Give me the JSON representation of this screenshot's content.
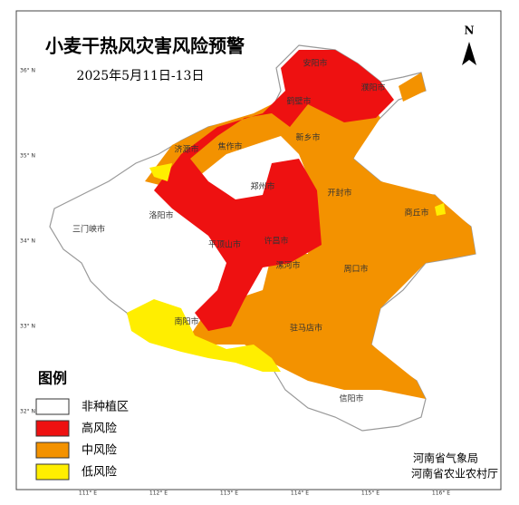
{
  "header": {
    "title": "小麦干热风灾害风险预警",
    "date": "2025年5月11日-13日"
  },
  "north": "N",
  "legend": {
    "title": "图例",
    "items": [
      {
        "label": "非种植区",
        "color": "#ffffff"
      },
      {
        "label": "高风险",
        "color": "#ee1111"
      },
      {
        "label": "中风险",
        "color": "#f39200"
      },
      {
        "label": "低风险",
        "color": "#ffee00"
      }
    ]
  },
  "cities": [
    "安阳市",
    "濮阳市",
    "鹤壁市",
    "新乡市",
    "济源市",
    "焦作市",
    "郑州市",
    "开封市",
    "商丘市",
    "三门峡市",
    "洛阳市",
    "平顶山市",
    "许昌市",
    "漯河市",
    "周口市",
    "南阳市",
    "驻马店市",
    "信阳市"
  ],
  "lat_labels": [
    "36° N",
    "35° N",
    "34° N",
    "33° N",
    "32° N"
  ],
  "lon_labels": [
    "111° E",
    "112° E",
    "113° E",
    "114° E",
    "115° E",
    "116° E"
  ],
  "issuers": [
    "河南省气象局",
    "河南省农业农村厅"
  ]
}
